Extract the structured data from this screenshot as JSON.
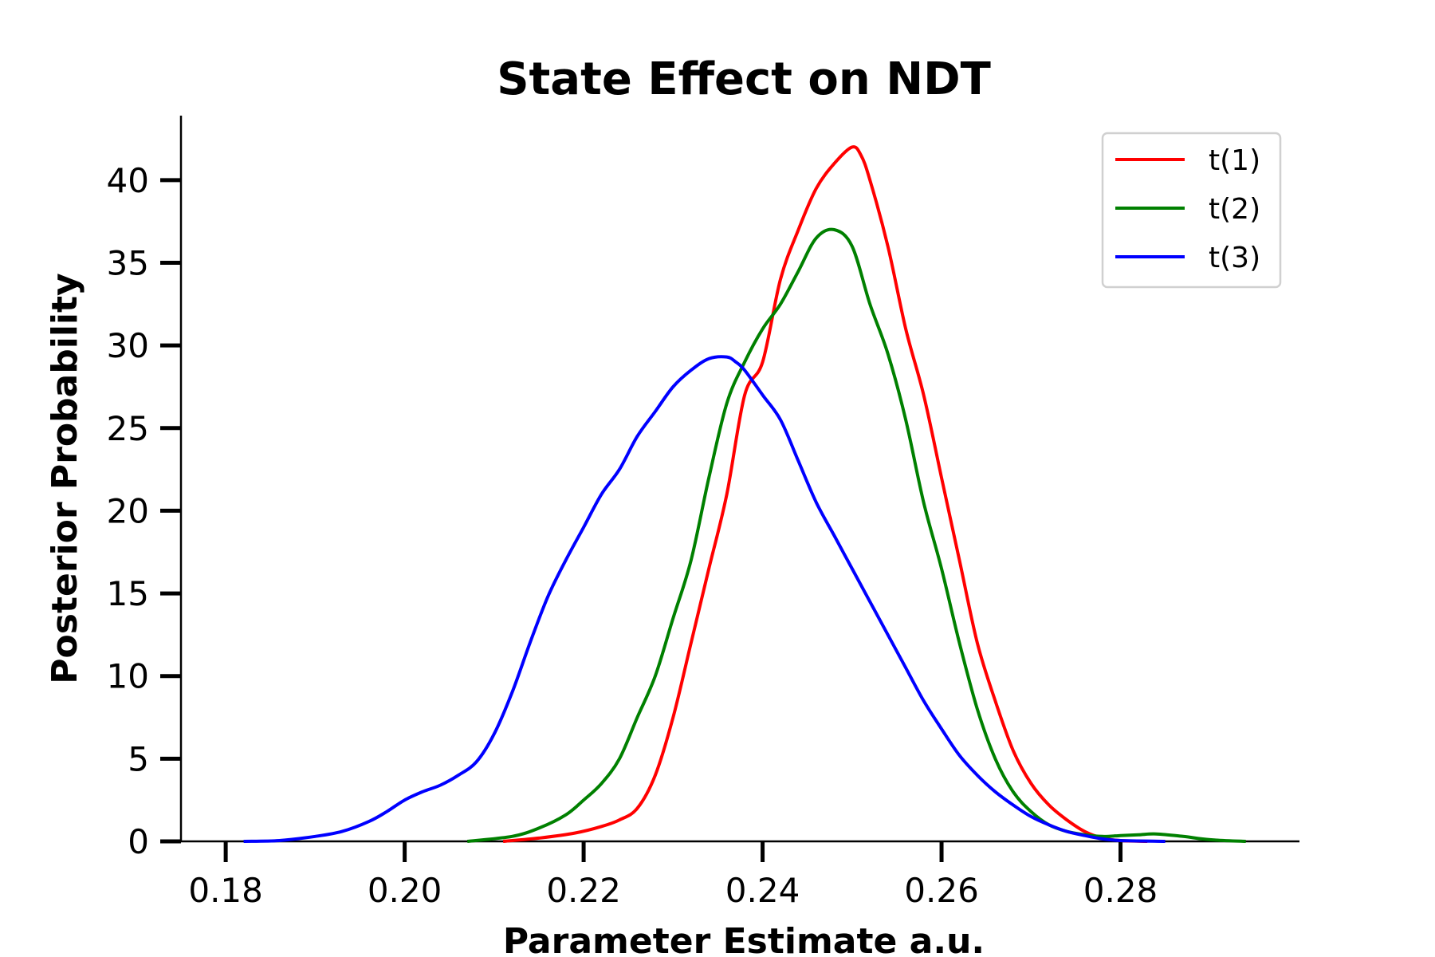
{
  "chart_data": {
    "type": "line",
    "title": "State Effect on NDT",
    "xlabel": "Parameter Estimate a.u.",
    "ylabel": "Posterior Probability",
    "xlim": [
      0.175,
      0.3
    ],
    "ylim": [
      0,
      43.9
    ],
    "xticks": [
      0.18,
      0.2,
      0.22,
      0.24,
      0.26,
      0.28
    ],
    "xtick_labels": [
      "0.18",
      "0.20",
      "0.22",
      "0.24",
      "0.26",
      "0.28"
    ],
    "yticks": [
      0,
      5,
      10,
      15,
      20,
      25,
      30,
      35,
      40
    ],
    "ytick_labels": [
      "0",
      "5",
      "10",
      "15",
      "20",
      "25",
      "30",
      "35",
      "40"
    ],
    "grid": false,
    "legend_position": "top-right",
    "series": [
      {
        "name": "t(1)",
        "color": "#ff0000",
        "x": [
          0.211,
          0.215,
          0.219,
          0.222,
          0.224,
          0.226,
          0.228,
          0.23,
          0.232,
          0.234,
          0.236,
          0.238,
          0.24,
          0.242,
          0.244,
          0.246,
          0.248,
          0.25,
          0.251,
          0.252,
          0.254,
          0.256,
          0.258,
          0.26,
          0.262,
          0.264,
          0.266,
          0.268,
          0.27,
          0.272,
          0.274,
          0.276,
          0.278,
          0.28,
          0.283
        ],
        "y": [
          0,
          0.2,
          0.5,
          0.9,
          1.3,
          2.0,
          4.0,
          7.5,
          12.0,
          16.5,
          21.0,
          27.0,
          29.0,
          34.0,
          37.0,
          39.5,
          41.0,
          42.0,
          41.5,
          40.0,
          36.0,
          31.0,
          27.0,
          22.0,
          17.0,
          12.0,
          8.5,
          5.5,
          3.5,
          2.2,
          1.3,
          0.6,
          0.2,
          0.05,
          0
        ]
      },
      {
        "name": "t(2)",
        "color": "#008000",
        "x": [
          0.207,
          0.212,
          0.215,
          0.218,
          0.22,
          0.222,
          0.224,
          0.226,
          0.228,
          0.23,
          0.232,
          0.234,
          0.236,
          0.238,
          0.24,
          0.242,
          0.244,
          0.246,
          0.248,
          0.25,
          0.252,
          0.254,
          0.256,
          0.258,
          0.26,
          0.262,
          0.264,
          0.266,
          0.268,
          0.27,
          0.272,
          0.274,
          0.276,
          0.278,
          0.28,
          0.282,
          0.284,
          0.287,
          0.29,
          0.294
        ],
        "y": [
          0,
          0.3,
          0.8,
          1.6,
          2.5,
          3.5,
          5.0,
          7.5,
          10.0,
          13.5,
          17.0,
          22.0,
          26.5,
          29.0,
          31.0,
          32.5,
          34.5,
          36.5,
          37.0,
          36.0,
          32.5,
          29.5,
          25.5,
          20.5,
          16.5,
          12.0,
          8.0,
          5.0,
          3.0,
          1.8,
          1.0,
          0.6,
          0.4,
          0.3,
          0.35,
          0.4,
          0.45,
          0.3,
          0.1,
          0
        ]
      },
      {
        "name": "t(3)",
        "color": "#0000ff",
        "x": [
          0.182,
          0.186,
          0.19,
          0.193,
          0.196,
          0.198,
          0.2,
          0.202,
          0.204,
          0.206,
          0.208,
          0.21,
          0.212,
          0.214,
          0.216,
          0.218,
          0.22,
          0.222,
          0.224,
          0.226,
          0.228,
          0.23,
          0.232,
          0.234,
          0.236,
          0.237,
          0.238,
          0.24,
          0.242,
          0.244,
          0.246,
          0.248,
          0.25,
          0.252,
          0.254,
          0.256,
          0.258,
          0.26,
          0.262,
          0.264,
          0.266,
          0.268,
          0.27,
          0.272,
          0.274,
          0.276,
          0.278,
          0.28,
          0.285
        ],
        "y": [
          0,
          0.05,
          0.3,
          0.6,
          1.2,
          1.8,
          2.5,
          3.0,
          3.4,
          4.0,
          4.8,
          6.5,
          9.0,
          12.0,
          14.8,
          17.0,
          19.0,
          21.0,
          22.5,
          24.5,
          26.0,
          27.5,
          28.5,
          29.2,
          29.3,
          29.0,
          28.5,
          27.0,
          25.5,
          23.0,
          20.5,
          18.5,
          16.5,
          14.5,
          12.5,
          10.5,
          8.5,
          6.8,
          5.2,
          4.0,
          3.0,
          2.2,
          1.5,
          1.0,
          0.6,
          0.35,
          0.15,
          0.05,
          0
        ]
      }
    ]
  }
}
